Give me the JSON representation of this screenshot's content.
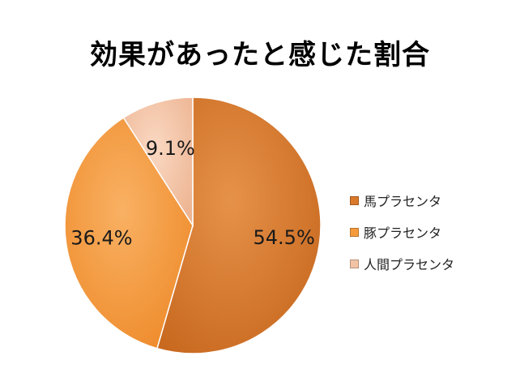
{
  "chart_data": {
    "type": "pie",
    "title": "効果があったと感じた割合",
    "legend_position": "right",
    "slices": [
      {
        "name": "馬プラセンタ",
        "value": 54.5,
        "label": "54.5%",
        "color": "#d9792a"
      },
      {
        "name": "豚プラセンタ",
        "value": 36.4,
        "label": "36.4%",
        "color": "#f59a3c"
      },
      {
        "name": "人間プラセンタ",
        "value": 9.1,
        "label": "9.1%",
        "color": "#f3c3a6"
      }
    ]
  }
}
